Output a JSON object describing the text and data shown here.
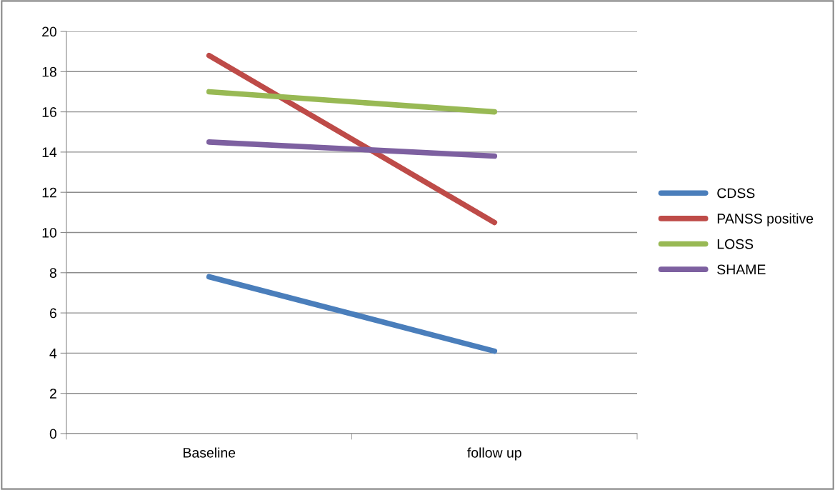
{
  "chart_data": {
    "type": "line",
    "categories": [
      "Baseline",
      "follow up"
    ],
    "series": [
      {
        "name": "CDSS",
        "color": "#4a7ebb",
        "values": [
          7.8,
          4.1
        ]
      },
      {
        "name": "PANSS positive",
        "color": "#be4b48",
        "values": [
          18.8,
          10.5
        ]
      },
      {
        "name": "LOSS",
        "color": "#98b954",
        "values": [
          17.0,
          16.0
        ]
      },
      {
        "name": "SHAME",
        "color": "#7d60a0",
        "values": [
          14.5,
          13.8
        ]
      }
    ],
    "ylim": [
      0,
      20
    ],
    "yticks": [
      0,
      2,
      4,
      6,
      8,
      10,
      12,
      14,
      16,
      18,
      20
    ],
    "grid": "y",
    "legend": "right",
    "marker": "none",
    "line_style": "solid"
  }
}
